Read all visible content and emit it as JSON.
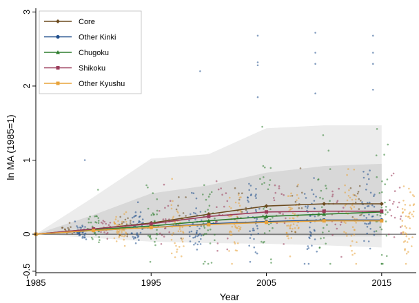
{
  "chart_data": {
    "type": "line",
    "xlabel": "Year",
    "ylabel": "ln MA (1985=1)",
    "xlim": [
      1985,
      2018
    ],
    "ylim": [
      -0.52,
      3.05
    ],
    "x_ticks": [
      1985,
      1995,
      2005,
      2015
    ],
    "y_ticks": [
      -0.5,
      0,
      1,
      2,
      3
    ],
    "y_tick_labels": [
      "-0.5",
      "0",
      "1",
      "2",
      "3"
    ],
    "legend_position": "top-left",
    "x": [
      1985,
      1990,
      1995,
      2000,
      2005,
      2010,
      2015
    ],
    "series": [
      {
        "name": "Core",
        "color": "#6b4a1e",
        "marker": "diamond",
        "values": [
          0,
          0.07,
          0.15,
          0.27,
          0.38,
          0.41,
          0.41
        ]
      },
      {
        "name": "Other Kinki",
        "color": "#1f4e8c",
        "marker": "circle",
        "values": [
          0,
          0.05,
          0.09,
          0.14,
          0.17,
          0.19,
          0.19
        ]
      },
      {
        "name": "Chugoku",
        "color": "#2e7d2e",
        "marker": "triangle",
        "values": [
          0,
          0.06,
          0.11,
          0.18,
          0.24,
          0.27,
          0.3
        ]
      },
      {
        "name": "Shikoku",
        "color": "#9b3b5a",
        "marker": "square",
        "values": [
          0,
          0.07,
          0.14,
          0.24,
          0.3,
          0.31,
          0.31
        ]
      },
      {
        "name": "Other Kyushu",
        "color": "#e8a33a",
        "marker": "square",
        "values": [
          0,
          0.05,
          0.09,
          0.13,
          0.16,
          0.18,
          0.18
        ]
      }
    ],
    "bands": [
      {
        "name": "outer",
        "color": "#ececec",
        "lower": [
          0,
          -0.05,
          -0.1,
          -0.12,
          -0.13,
          -0.15,
          -0.18
        ],
        "upper": [
          0,
          0.5,
          1.02,
          1.08,
          1.43,
          1.47,
          1.47
        ]
      },
      {
        "name": "inner",
        "color": "#d8d8d8",
        "lower": [
          0,
          -0.01,
          -0.02,
          -0.02,
          -0.02,
          -0.03,
          -0.03
        ],
        "upper": [
          0,
          0.26,
          0.55,
          0.66,
          0.83,
          0.92,
          0.95
        ]
      }
    ],
    "scatter_clouds": [
      {
        "series": "Core",
        "x": 1990,
        "mean": 0.07,
        "sd": 0.06,
        "n": 12
      },
      {
        "series": "Other Kinki",
        "x": 1990,
        "mean": 0.05,
        "sd": 0.06,
        "n": 40
      },
      {
        "series": "Chugoku",
        "x": 1990,
        "mean": 0.08,
        "sd": 0.11,
        "n": 30
      },
      {
        "series": "Shikoku",
        "x": 1990,
        "mean": 0.08,
        "sd": 0.08,
        "n": 18
      },
      {
        "series": "Other Kyushu",
        "x": 1990,
        "mean": 0.06,
        "sd": 0.09,
        "n": 45
      },
      {
        "series": "Core",
        "x": 1995,
        "mean": 0.14,
        "sd": 0.1,
        "n": 12
      },
      {
        "series": "Other Kinki",
        "x": 1995,
        "mean": 0.1,
        "sd": 0.13,
        "n": 40
      },
      {
        "series": "Chugoku",
        "x": 1995,
        "mean": 0.17,
        "sd": 0.25,
        "n": 30
      },
      {
        "series": "Shikoku",
        "x": 1995,
        "mean": 0.16,
        "sd": 0.17,
        "n": 18
      },
      {
        "series": "Other Kyushu",
        "x": 1995,
        "mean": 0.1,
        "sd": 0.17,
        "n": 45
      },
      {
        "series": "Core",
        "x": 2000,
        "mean": 0.25,
        "sd": 0.15,
        "n": 12
      },
      {
        "series": "Other Kinki",
        "x": 2000,
        "mean": 0.15,
        "sd": 0.2,
        "n": 40
      },
      {
        "series": "Chugoku",
        "x": 2000,
        "mean": 0.24,
        "sd": 0.33,
        "n": 30
      },
      {
        "series": "Shikoku",
        "x": 2000,
        "mean": 0.26,
        "sd": 0.22,
        "n": 18
      },
      {
        "series": "Other Kyushu",
        "x": 2000,
        "mean": 0.14,
        "sd": 0.2,
        "n": 45
      },
      {
        "series": "Core",
        "x": 2005,
        "mean": 0.36,
        "sd": 0.18,
        "n": 12
      },
      {
        "series": "Other Kinki",
        "x": 2005,
        "mean": 0.2,
        "sd": 0.28,
        "n": 40
      },
      {
        "series": "Chugoku",
        "x": 2005,
        "mean": 0.28,
        "sd": 0.4,
        "n": 30
      },
      {
        "series": "Shikoku",
        "x": 2005,
        "mean": 0.31,
        "sd": 0.3,
        "n": 18
      },
      {
        "series": "Other Kyushu",
        "x": 2005,
        "mean": 0.16,
        "sd": 0.24,
        "n": 45
      },
      {
        "series": "Core",
        "x": 2010,
        "mean": 0.4,
        "sd": 0.2,
        "n": 12
      },
      {
        "series": "Other Kinki",
        "x": 2010,
        "mean": 0.21,
        "sd": 0.3,
        "n": 40
      },
      {
        "series": "Chugoku",
        "x": 2010,
        "mean": 0.31,
        "sd": 0.43,
        "n": 30
      },
      {
        "series": "Shikoku",
        "x": 2010,
        "mean": 0.31,
        "sd": 0.3,
        "n": 18
      },
      {
        "series": "Other Kyushu",
        "x": 2010,
        "mean": 0.18,
        "sd": 0.26,
        "n": 45
      },
      {
        "series": "Core",
        "x": 2015,
        "mean": 0.4,
        "sd": 0.2,
        "n": 12
      },
      {
        "series": "Other Kinki",
        "x": 2015,
        "mean": 0.21,
        "sd": 0.32,
        "n": 40
      },
      {
        "series": "Chugoku",
        "x": 2015,
        "mean": 0.33,
        "sd": 0.45,
        "n": 30
      },
      {
        "series": "Shikoku",
        "x": 2015,
        "mean": 0.31,
        "sd": 0.32,
        "n": 18
      },
      {
        "series": "Other Kyushu",
        "x": 2015,
        "mean": 0.18,
        "sd": 0.28,
        "n": 45
      }
    ],
    "outliers": [
      {
        "series": "Other Kinki",
        "x": 1990,
        "y": 1.0
      },
      {
        "series": "Chugoku",
        "x": 1990,
        "y": 0.6
      },
      {
        "series": "Other Kinki",
        "x": 2000,
        "y": 2.2
      },
      {
        "series": "Other Kinki",
        "x": 2005,
        "y": 2.68
      },
      {
        "series": "Other Kinki",
        "x": 2005,
        "y": 2.32
      },
      {
        "series": "Other Kinki",
        "x": 2005,
        "y": 2.28
      },
      {
        "series": "Other Kinki",
        "x": 2005,
        "y": 1.85
      },
      {
        "series": "Other Kinki",
        "x": 2010,
        "y": 2.72
      },
      {
        "series": "Other Kinki",
        "x": 2010,
        "y": 2.45
      },
      {
        "series": "Other Kinki",
        "x": 2010,
        "y": 2.3
      },
      {
        "series": "Other Kinki",
        "x": 2010,
        "y": 1.9
      },
      {
        "series": "Other Kinki",
        "x": 2015,
        "y": 2.68
      },
      {
        "series": "Other Kinki",
        "x": 2015,
        "y": 2.45
      },
      {
        "series": "Other Kinki",
        "x": 2015,
        "y": 2.3
      },
      {
        "series": "Other Kinki",
        "x": 2015,
        "y": 1.95
      }
    ]
  }
}
